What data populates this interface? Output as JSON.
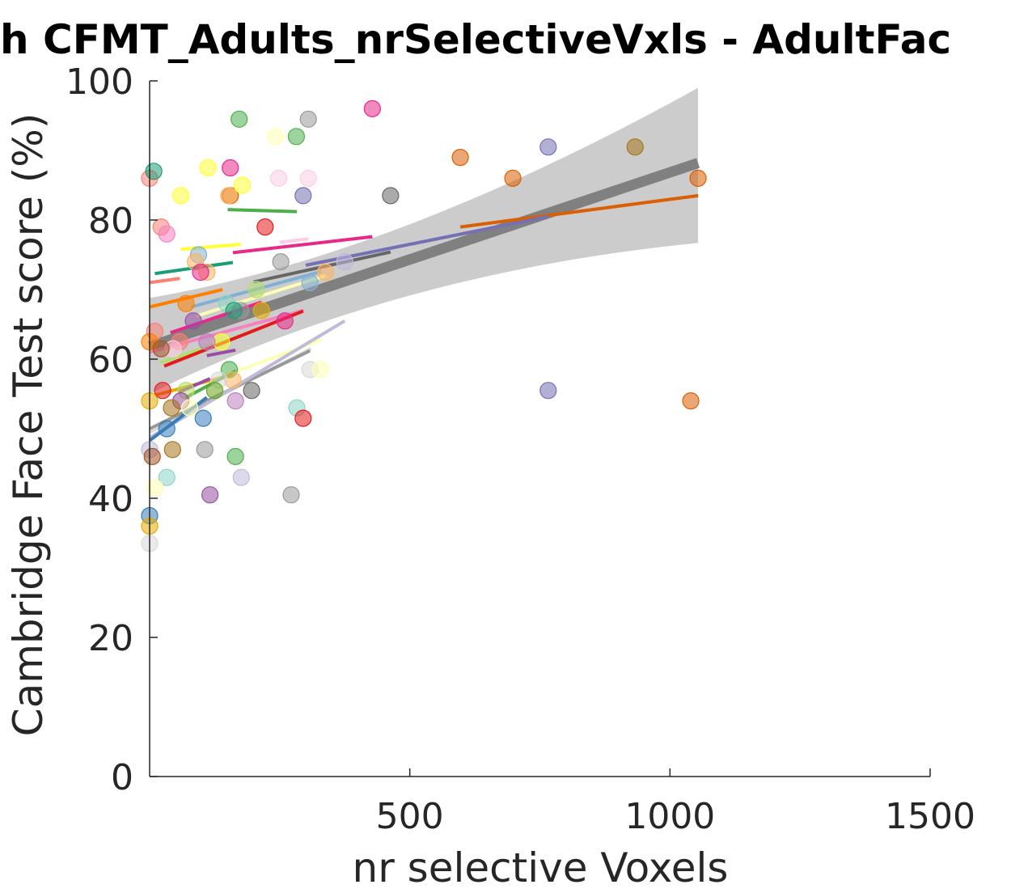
{
  "chart_data": {
    "type": "scatter",
    "title": "h CFMT_Adults_nrSelectiveVxls - AdultFac",
    "xlabel": "nr selective Voxels",
    "ylabel": "Cambridge Face Test score (%)",
    "xlim": [
      0,
      1500
    ],
    "ylim": [
      0,
      100
    ],
    "xticks": [
      500,
      1000,
      1500
    ],
    "yticks": [
      0,
      20,
      40,
      60,
      80,
      100
    ],
    "grid": false,
    "legend": "none",
    "colors": [
      "#1b9e77",
      "#d95f02",
      "#7570b3",
      "#e7298a",
      "#66a61e",
      "#e6ab02",
      "#a6761d",
      "#666666",
      "#e41a1c",
      "#377eb8",
      "#4daf4a",
      "#984ea3",
      "#ff7f00",
      "#ffff33",
      "#a65628",
      "#f781bf",
      "#999999",
      "#8dd3c7",
      "#ffffb3",
      "#bebada",
      "#fb8072",
      "#80b1d3",
      "#fdb462",
      "#b3de69",
      "#fccde5",
      "#d9d9d9",
      "#bc80bd"
    ],
    "points": [
      {
        "x": 0,
        "y": 86,
        "c": 20
      },
      {
        "x": 8,
        "y": 87,
        "c": 0
      },
      {
        "x": 22,
        "y": 79,
        "c": 20
      },
      {
        "x": 33,
        "y": 78,
        "c": 15
      },
      {
        "x": 60,
        "y": 83.5,
        "c": 13
      },
      {
        "x": 112,
        "y": 87.5,
        "c": 13
      },
      {
        "x": 155,
        "y": 83.5,
        "c": 1
      },
      {
        "x": 172,
        "y": 94.5,
        "c": 10
      },
      {
        "x": 152,
        "y": 83.5,
        "c": 22
      },
      {
        "x": 178,
        "y": 85,
        "c": 13
      },
      {
        "x": 155,
        "y": 87.5,
        "c": 3
      },
      {
        "x": 242,
        "y": 92,
        "c": 18
      },
      {
        "x": 282,
        "y": 92,
        "c": 10
      },
      {
        "x": 305,
        "y": 94.5,
        "c": 16
      },
      {
        "x": 248,
        "y": 86,
        "c": 24
      },
      {
        "x": 305,
        "y": 86,
        "c": 24
      },
      {
        "x": 295,
        "y": 83.5,
        "c": 2
      },
      {
        "x": 428,
        "y": 96,
        "c": 3
      },
      {
        "x": 463,
        "y": 83.5,
        "c": 7
      },
      {
        "x": 597,
        "y": 89,
        "c": 1
      },
      {
        "x": 698,
        "y": 86,
        "c": 1
      },
      {
        "x": 766,
        "y": 90.5,
        "c": 2
      },
      {
        "x": 933,
        "y": 90.5,
        "c": 6
      },
      {
        "x": 1054,
        "y": 86,
        "c": 1
      },
      {
        "x": 94,
        "y": 75,
        "c": 21
      },
      {
        "x": 88,
        "y": 74,
        "c": 22
      },
      {
        "x": 110,
        "y": 72.5,
        "c": 22
      },
      {
        "x": 98,
        "y": 72.5,
        "c": 3
      },
      {
        "x": 222,
        "y": 79,
        "c": 8
      },
      {
        "x": 252,
        "y": 74,
        "c": 16
      },
      {
        "x": 375,
        "y": 74,
        "c": 19
      },
      {
        "x": 338,
        "y": 72.5,
        "c": 22
      },
      {
        "x": 308,
        "y": 71,
        "c": 21
      },
      {
        "x": 205,
        "y": 70,
        "c": 23
      },
      {
        "x": 70,
        "y": 68,
        "c": 12
      },
      {
        "x": 148,
        "y": 68,
        "c": 17
      },
      {
        "x": 175,
        "y": 67,
        "c": 16
      },
      {
        "x": 162,
        "y": 67,
        "c": 0
      },
      {
        "x": 215,
        "y": 67,
        "c": 5
      },
      {
        "x": 84,
        "y": 65.5,
        "c": 11
      },
      {
        "x": 260,
        "y": 65.5,
        "c": 3
      },
      {
        "x": 10,
        "y": 64,
        "c": 20
      },
      {
        "x": 0,
        "y": 62.5,
        "c": 12
      },
      {
        "x": 138,
        "y": 62.5,
        "c": 13
      },
      {
        "x": 58,
        "y": 62.5,
        "c": 20
      },
      {
        "x": 110,
        "y": 62.5,
        "c": 26
      },
      {
        "x": 45,
        "y": 61.5,
        "c": 24
      },
      {
        "x": 22,
        "y": 61.5,
        "c": 14
      },
      {
        "x": 308,
        "y": 58.5,
        "c": 25
      },
      {
        "x": 328,
        "y": 58.5,
        "c": 18
      },
      {
        "x": 153,
        "y": 58.5,
        "c": 10
      },
      {
        "x": 160,
        "y": 57,
        "c": 22
      },
      {
        "x": 133,
        "y": 57,
        "c": 25
      },
      {
        "x": 25,
        "y": 55.5,
        "c": 8
      },
      {
        "x": 70,
        "y": 55.5,
        "c": 23
      },
      {
        "x": 125,
        "y": 55.5,
        "c": 4
      },
      {
        "x": 196,
        "y": 55.5,
        "c": 7
      },
      {
        "x": 165,
        "y": 54,
        "c": 26
      },
      {
        "x": 0,
        "y": 54,
        "c": 5
      },
      {
        "x": 60,
        "y": 54,
        "c": 11
      },
      {
        "x": 42,
        "y": 53,
        "c": 6
      },
      {
        "x": 77,
        "y": 53,
        "c": 18
      },
      {
        "x": 283,
        "y": 53,
        "c": 17
      },
      {
        "x": 103,
        "y": 51.5,
        "c": 9
      },
      {
        "x": 295,
        "y": 51.5,
        "c": 8
      },
      {
        "x": 33,
        "y": 50,
        "c": 9
      },
      {
        "x": 0,
        "y": 47,
        "c": 19
      },
      {
        "x": 44,
        "y": 47,
        "c": 6
      },
      {
        "x": 106,
        "y": 47,
        "c": 16
      },
      {
        "x": 5,
        "y": 46,
        "c": 14
      },
      {
        "x": 165,
        "y": 46,
        "c": 10
      },
      {
        "x": 33,
        "y": 43,
        "c": 17
      },
      {
        "x": 176,
        "y": 43,
        "c": 19
      },
      {
        "x": 10,
        "y": 41.5,
        "c": 18
      },
      {
        "x": 116,
        "y": 40.5,
        "c": 11
      },
      {
        "x": 272,
        "y": 40.5,
        "c": 16
      },
      {
        "x": 0,
        "y": 37.5,
        "c": 9
      },
      {
        "x": 0,
        "y": 36,
        "c": 5
      },
      {
        "x": 0,
        "y": 33.5,
        "c": 25
      },
      {
        "x": 766,
        "y": 55.5,
        "c": 2
      },
      {
        "x": 1040,
        "y": 54,
        "c": 1
      }
    ],
    "fits": [
      {
        "x": [
          597,
          1054
        ],
        "y": [
          79,
          83.5
        ],
        "c": 1
      },
      {
        "x": [
          300,
          766
        ],
        "y": [
          73.5,
          80.5
        ],
        "c": 2
      },
      {
        "x": [
          150,
          283
        ],
        "y": [
          81.5,
          81.2
        ],
        "c": 10
      },
      {
        "x": [
          160,
          428
        ],
        "y": [
          75.3,
          77.6
        ],
        "c": 3
      },
      {
        "x": [
          250,
          305
        ],
        "y": [
          76.8,
          77.3
        ],
        "c": 24
      },
      {
        "x": [
          60,
          175
        ],
        "y": [
          75.8,
          76.5
        ],
        "c": 13
      },
      {
        "x": [
          10,
          160
        ],
        "y": [
          72.3,
          73.9
        ],
        "c": 0
      },
      {
        "x": [
          0,
          58
        ],
        "y": [
          71,
          71.6
        ],
        "c": 20
      },
      {
        "x": [
          200,
          463
        ],
        "y": [
          71.1,
          75.4
        ],
        "c": 7
      },
      {
        "x": [
          0,
          140
        ],
        "y": [
          67.5,
          70
        ],
        "c": 12
      },
      {
        "x": [
          80,
          330
        ],
        "y": [
          67.5,
          72.6
        ],
        "c": 21
      },
      {
        "x": [
          90,
          338
        ],
        "y": [
          66.2,
          72
        ],
        "c": 18
      },
      {
        "x": [
          40,
          215
        ],
        "y": [
          63.8,
          68.2
        ],
        "c": 3
      },
      {
        "x": [
          20,
          200
        ],
        "y": [
          59.5,
          64
        ],
        "c": 23
      },
      {
        "x": [
          0,
          296
        ],
        "y": [
          61,
          67
        ],
        "c": 15
      },
      {
        "x": [
          28,
          295
        ],
        "y": [
          59,
          66.9
        ],
        "c": 8
      },
      {
        "x": [
          110,
          165
        ],
        "y": [
          60.5,
          61.3
        ],
        "c": 11
      },
      {
        "x": [
          140,
          330
        ],
        "y": [
          57.5,
          62.8
        ],
        "c": 18
      },
      {
        "x": [
          0,
          310
        ],
        "y": [
          49.5,
          61.5
        ],
        "c": 25
      },
      {
        "x": [
          0,
          308
        ],
        "y": [
          50,
          61.2
        ],
        "c": 16
      },
      {
        "x": [
          0,
          375
        ],
        "y": [
          48.7,
          65.5
        ],
        "c": 19
      },
      {
        "x": [
          10,
          160
        ],
        "y": [
          54.8,
          57.8
        ],
        "c": 5
      },
      {
        "x": [
          70,
          165
        ],
        "y": [
          54.5,
          58.3
        ],
        "c": 10
      },
      {
        "x": [
          55,
          116
        ],
        "y": [
          55.2,
          57.2
        ],
        "c": 11
      },
      {
        "x": [
          0,
          110
        ],
        "y": [
          48.3,
          54.5
        ],
        "c": 9
      }
    ],
    "overall_fit": {
      "x": [
        0,
        1054
      ],
      "y": [
        61.8,
        88.2
      ],
      "ci_upper": [
        68.8,
        99
      ],
      "ci_lower": [
        55,
        76.7
      ],
      "ci_mid_x": 470,
      "ci_mid_upper": 77.8,
      "ci_mid_lower": 69.4,
      "line_color": "#808080",
      "band_color": "#cccccc"
    }
  }
}
